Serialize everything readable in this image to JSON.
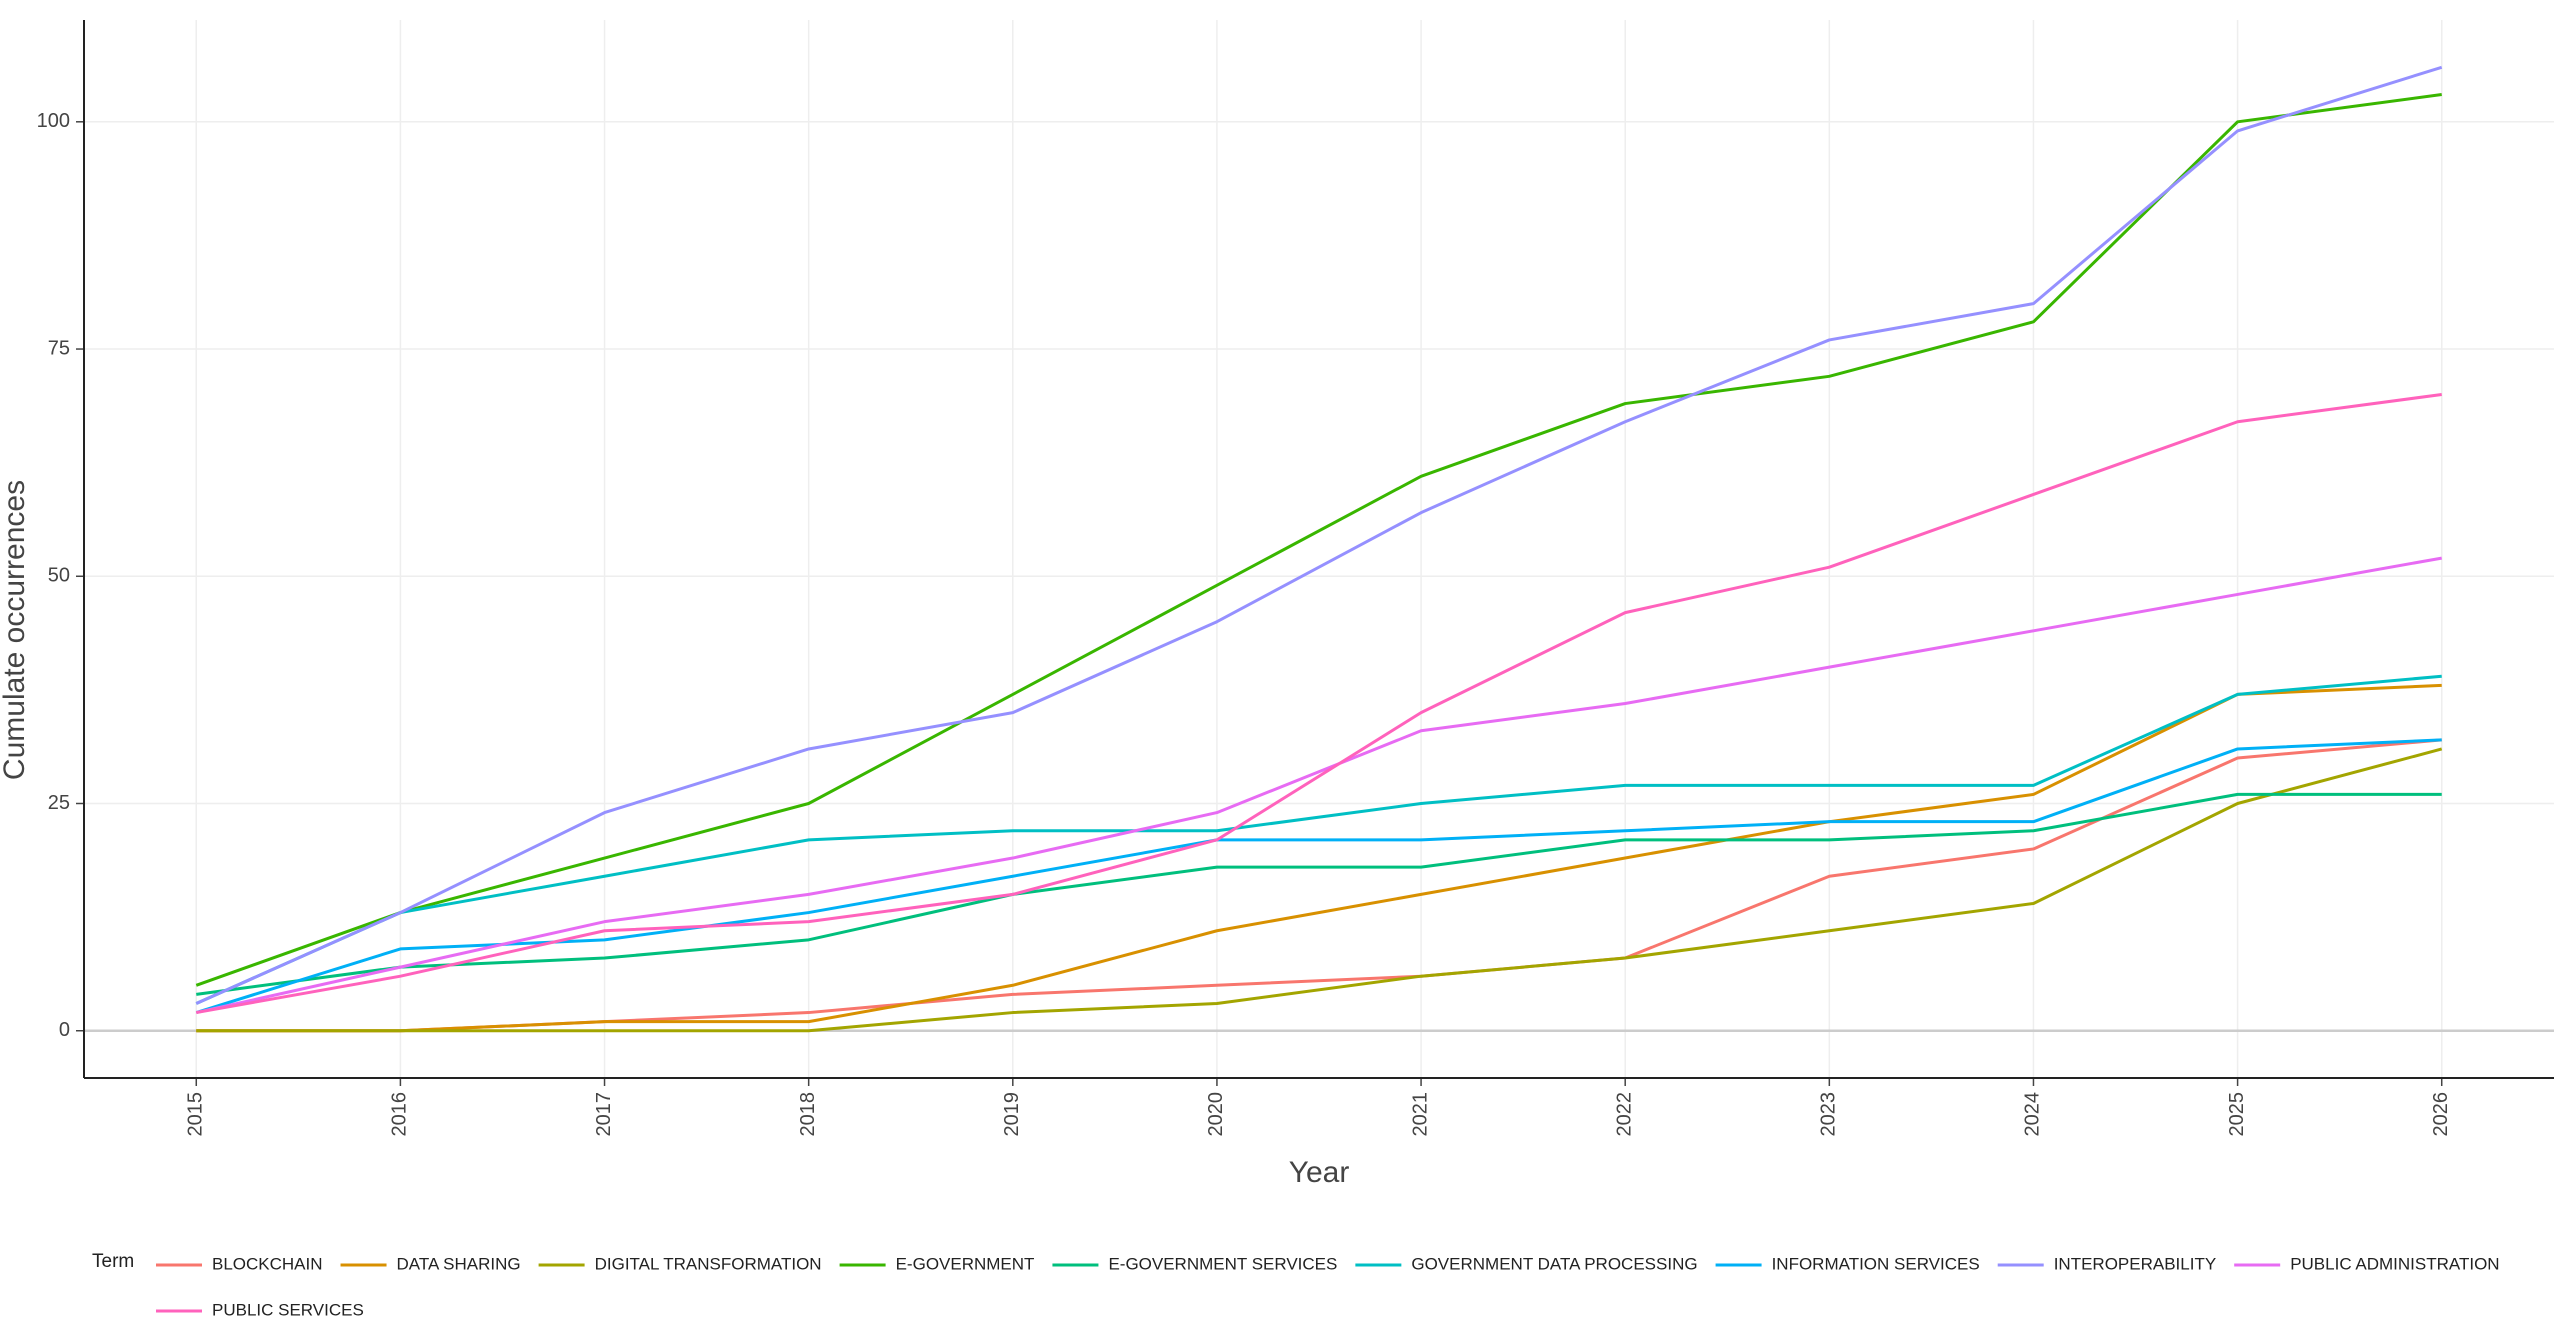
{
  "chart_data": {
    "type": "line",
    "x_label": "Year",
    "y_label": "Cumulate occurrences",
    "legend_title": "Term",
    "x": [
      2015,
      2016,
      2017,
      2018,
      2019,
      2020,
      2021,
      2022,
      2023,
      2024,
      2025,
      2026
    ],
    "xlim": [
      2014.45,
      2026.55
    ],
    "xticks": [
      2015,
      2016,
      2017,
      2018,
      2019,
      2020,
      2021,
      2022,
      2023,
      2024,
      2025,
      2026
    ],
    "ylim": [
      -5.2,
      111.2
    ],
    "yticks": [
      0,
      25,
      50,
      75,
      100
    ],
    "grid": true,
    "legend": "bottom",
    "series": [
      {
        "name": "BLOCKCHAIN",
        "color": "#F8766D",
        "values": [
          0,
          0,
          1,
          2,
          4,
          5,
          6,
          8,
          17,
          20,
          30,
          32
        ]
      },
      {
        "name": "DATA SHARING",
        "color": "#D89000",
        "values": [
          0,
          0,
          1,
          1,
          5,
          11,
          15,
          19,
          23,
          26,
          37,
          38
        ]
      },
      {
        "name": "DIGITAL TRANSFORMATION",
        "color": "#A3A500",
        "values": [
          0,
          0,
          0,
          0,
          2,
          3,
          6,
          8,
          11,
          14,
          25,
          31
        ]
      },
      {
        "name": "E-GOVERNMENT",
        "color": "#39B600",
        "values": [
          5,
          13,
          19,
          25,
          37,
          49,
          61,
          69,
          72,
          78,
          100,
          103
        ]
      },
      {
        "name": "E-GOVERNMENT SERVICES",
        "color": "#00BF7D",
        "values": [
          4,
          7,
          8,
          10,
          15,
          18,
          18,
          21,
          21,
          22,
          26,
          26
        ]
      },
      {
        "name": "GOVERNMENT DATA PROCESSING",
        "color": "#00BFC4",
        "values": [
          3,
          13,
          17,
          21,
          22,
          22,
          25,
          27,
          27,
          27,
          37,
          39
        ]
      },
      {
        "name": "INFORMATION SERVICES",
        "color": "#00B0F6",
        "values": [
          2,
          9,
          10,
          13,
          17,
          21,
          21,
          22,
          23,
          23,
          31,
          32
        ]
      },
      {
        "name": "INTEROPERABILITY",
        "color": "#9590FF",
        "values": [
          3,
          13,
          24,
          31,
          35,
          45,
          57,
          67,
          76,
          80,
          99,
          106
        ]
      },
      {
        "name": "PUBLIC ADMINISTRATION",
        "color": "#E76BF3",
        "values": [
          2,
          7,
          12,
          15,
          19,
          24,
          33,
          36,
          40,
          44,
          48,
          52
        ]
      },
      {
        "name": "PUBLIC SERVICES",
        "color": "#FF62BC",
        "values": [
          2,
          6,
          11,
          12,
          15,
          21,
          35,
          46,
          51,
          59,
          67,
          70
        ]
      }
    ]
  }
}
